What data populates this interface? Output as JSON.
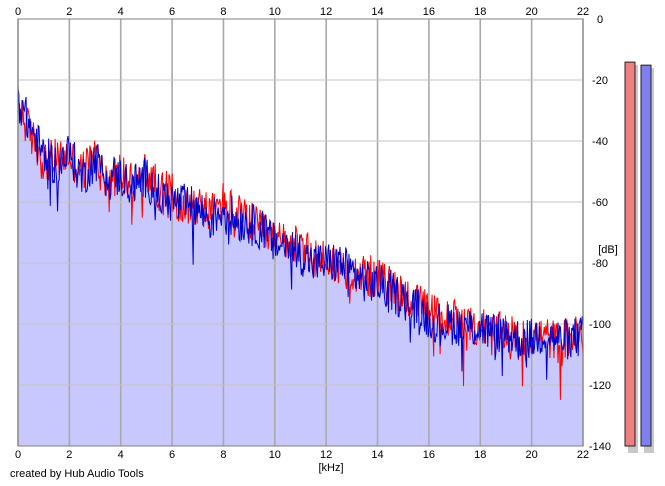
{
  "chart_data": {
    "type": "line",
    "xlabel": "[kHz]",
    "ylabel": "[dB]",
    "xlim": [
      0,
      22
    ],
    "ylim": [
      -140,
      0
    ],
    "x_ticks": [
      "0",
      "2",
      "4",
      "6",
      "8",
      "10",
      "12",
      "14",
      "16",
      "18",
      "20",
      "22"
    ],
    "y_ticks": [
      "0",
      "-20",
      "-40",
      "-60",
      "-80",
      "-100",
      "-120",
      "-140"
    ],
    "grid": true,
    "series": [
      {
        "color": "#ff0000",
        "x": [
          0.0,
          0.5,
          1.0,
          1.5,
          2.0,
          2.5,
          3.0,
          3.5,
          4.0,
          4.5,
          5.0,
          5.5,
          6.0,
          6.5,
          7.0,
          7.5,
          8.0,
          8.5,
          9.0,
          9.5,
          10.0,
          10.5,
          11.0,
          11.5,
          12.0,
          12.5,
          13.0,
          13.5,
          14.0,
          14.5,
          15.0,
          15.5,
          16.0,
          16.5,
          17.0,
          17.5,
          18.0,
          18.5,
          19.0,
          19.5,
          20.0,
          20.5,
          21.0,
          21.5,
          22.0
        ],
        "y": [
          -28,
          -38,
          -47,
          -46,
          -45,
          -50,
          -45,
          -53,
          -50,
          -55,
          -50,
          -56,
          -57,
          -62,
          -60,
          -64,
          -60,
          -64,
          -66,
          -70,
          -73,
          -72,
          -76,
          -78,
          -79,
          -81,
          -82,
          -84,
          -85,
          -88,
          -90,
          -93,
          -96,
          -98,
          -98,
          -102,
          -100,
          -104,
          -102,
          -106,
          -104,
          -104,
          -106,
          -104,
          -104
        ]
      },
      {
        "color": "#0000cc",
        "x": [
          0.0,
          0.5,
          1.0,
          1.5,
          2.0,
          2.5,
          3.0,
          3.5,
          4.0,
          4.5,
          5.0,
          5.5,
          6.0,
          6.5,
          7.0,
          7.5,
          8.0,
          8.5,
          9.0,
          9.5,
          10.0,
          10.5,
          11.0,
          11.5,
          12.0,
          12.5,
          13.0,
          13.5,
          14.0,
          14.5,
          15.0,
          15.5,
          16.0,
          16.5,
          17.0,
          17.5,
          18.0,
          18.5,
          19.0,
          19.5,
          20.0,
          20.5,
          21.0,
          21.5,
          22.0
        ],
        "y": [
          -26,
          -36,
          -45,
          -48,
          -44,
          -52,
          -46,
          -51,
          -52,
          -54,
          -52,
          -58,
          -60,
          -61,
          -62,
          -66,
          -62,
          -66,
          -67,
          -69,
          -74,
          -74,
          -77,
          -80,
          -80,
          -80,
          -83,
          -86,
          -87,
          -89,
          -92,
          -95,
          -98,
          -100,
          -100,
          -101,
          -101,
          -103,
          -103,
          -105,
          -105,
          -103,
          -105,
          -105,
          -104
        ]
      }
    ],
    "fill_color": "#c8c8ff",
    "level_meters": [
      {
        "color": "#f07f7f",
        "level": -2
      },
      {
        "color": "#7f7ff0",
        "level": -3
      }
    ]
  },
  "credit": "created by Hub Audio Tools"
}
